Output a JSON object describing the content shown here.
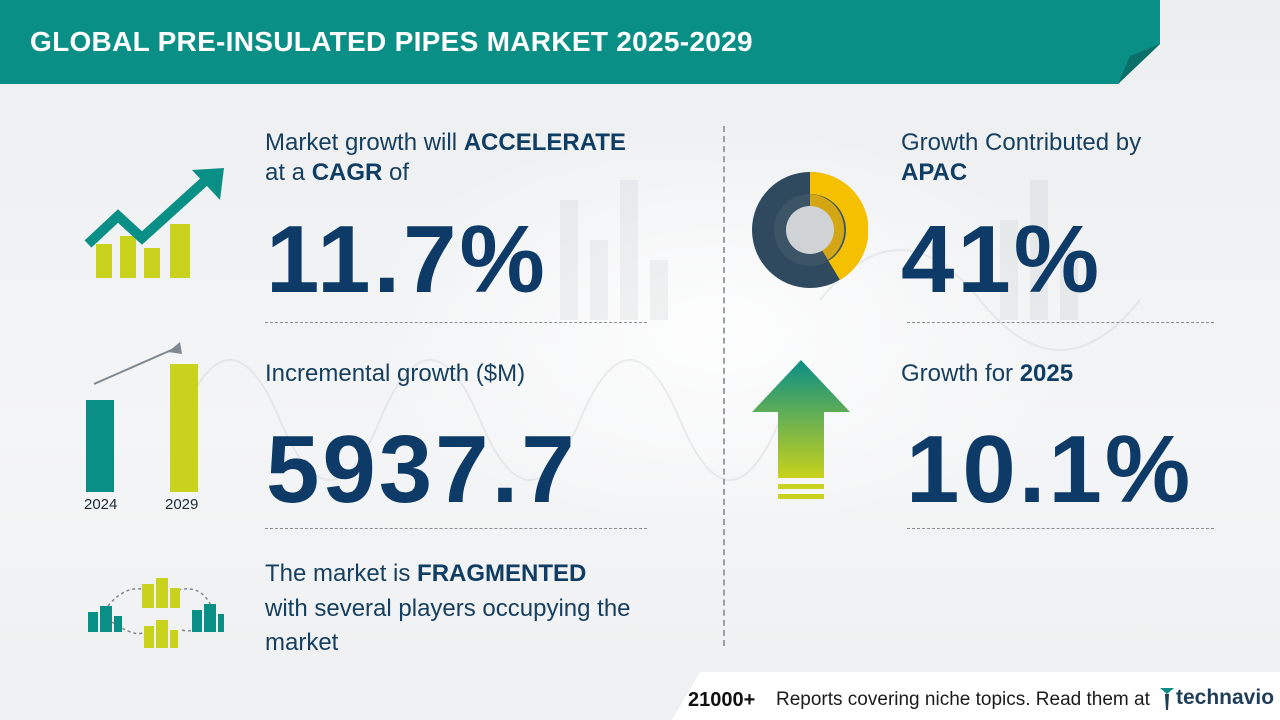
{
  "header": {
    "title": "GLOBAL PRE-INSULATED PIPES MARKET 2025-2029"
  },
  "cagr": {
    "line1_prefix": "Market growth will",
    "line1_bold": "ACCELERATE",
    "line2_prefix": "at a",
    "line2_bold": "CAGR",
    "line2_suffix": "of",
    "value": "11.7%"
  },
  "incremental": {
    "label": "Incremental growth ($M)",
    "value": "5937.7",
    "year_start": "2024",
    "year_end": "2029"
  },
  "fragmented": {
    "line1_prefix": "The market is",
    "line1_bold": "FRAGMENTED",
    "line2": "with several players occupying the",
    "line3": "market"
  },
  "region": {
    "label": "Growth Contributed by",
    "region_name": "APAC",
    "value": "41%"
  },
  "growth_year": {
    "label": "Growth for",
    "year": "2025",
    "value": "10.1%"
  },
  "footer": {
    "count": "21000+",
    "text": "Reports covering niche topics. Read them at",
    "brand": "technavio"
  },
  "colors": {
    "teal": "#0a8f86",
    "navy": "#0d3a66",
    "yellow_green": "#c9d21c",
    "donut_dark": "#2f4a5e",
    "donut_yellow": "#f5c000"
  }
}
